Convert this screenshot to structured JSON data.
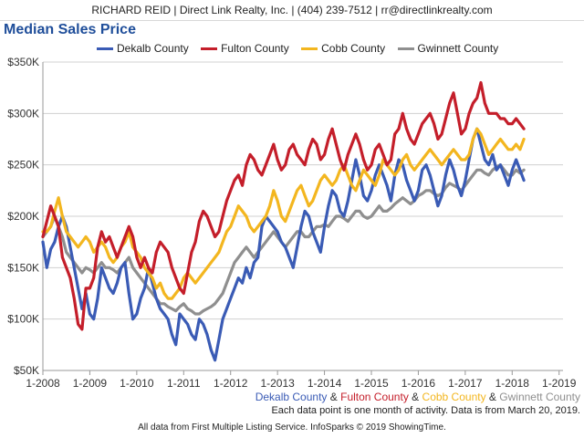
{
  "header": {
    "contact": "RICHARD REID | Direct Link Realty, Inc. | (404) 239-7512 | rr@directlinkrealty.com"
  },
  "colors": {
    "dekalb": "#3a5bb5",
    "fulton": "#c41e2a",
    "cobb": "#f3b61f",
    "gwinnett": "#8f8f8f",
    "title": "#1f4e9a"
  },
  "chart_data": {
    "type": "line",
    "title": "Median Sales Price",
    "xlabel": "",
    "ylabel": "",
    "ylim": [
      50000,
      350000
    ],
    "ytick_values": [
      50000,
      100000,
      150000,
      200000,
      250000,
      300000,
      350000
    ],
    "ytick_labels": [
      "$50K",
      "$100K",
      "$150K",
      "$200K",
      "$250K",
      "$300K",
      "$350K"
    ],
    "xtick_labels": [
      "1-2008",
      "1-2009",
      "1-2010",
      "1-2011",
      "1-2012",
      "1-2013",
      "1-2014",
      "1-2015",
      "1-2016",
      "1-2017",
      "1-2018",
      "1-2019"
    ],
    "x_start": "1-2008",
    "x_step": "1 month",
    "legend_position": "top",
    "series": [
      {
        "name": "Dekalb County",
        "key": "dekalb",
        "values": [
          175000,
          150000,
          168000,
          175000,
          190000,
          200000,
          190000,
          170000,
          150000,
          130000,
          110000,
          125000,
          105000,
          100000,
          120000,
          150000,
          140000,
          130000,
          125000,
          135000,
          150000,
          155000,
          125000,
          100000,
          105000,
          120000,
          130000,
          150000,
          135000,
          120000,
          110000,
          105000,
          100000,
          85000,
          75000,
          105000,
          100000,
          95000,
          85000,
          80000,
          100000,
          95000,
          85000,
          70000,
          60000,
          80000,
          100000,
          110000,
          120000,
          130000,
          140000,
          135000,
          150000,
          140000,
          155000,
          160000,
          190000,
          200000,
          195000,
          190000,
          185000,
          175000,
          170000,
          160000,
          150000,
          170000,
          190000,
          205000,
          200000,
          185000,
          175000,
          165000,
          190000,
          210000,
          225000,
          220000,
          205000,
          200000,
          215000,
          235000,
          255000,
          240000,
          220000,
          215000,
          225000,
          240000,
          250000,
          240000,
          230000,
          215000,
          240000,
          255000,
          250000,
          235000,
          225000,
          215000,
          225000,
          245000,
          250000,
          240000,
          225000,
          210000,
          220000,
          240000,
          255000,
          245000,
          230000,
          220000,
          235000,
          255000,
          275000,
          285000,
          270000,
          255000,
          250000,
          260000,
          245000,
          250000,
          240000,
          230000,
          245000,
          255000,
          245000,
          235000
        ],
        "label_text": "Dekalb County"
      },
      {
        "name": "Fulton County",
        "key": "fulton",
        "values": [
          180000,
          195000,
          210000,
          200000,
          190000,
          160000,
          150000,
          140000,
          120000,
          95000,
          90000,
          130000,
          130000,
          140000,
          170000,
          185000,
          175000,
          180000,
          170000,
          160000,
          170000,
          180000,
          190000,
          180000,
          160000,
          150000,
          160000,
          150000,
          145000,
          165000,
          175000,
          170000,
          165000,
          150000,
          140000,
          130000,
          125000,
          145000,
          165000,
          175000,
          195000,
          205000,
          200000,
          190000,
          180000,
          185000,
          200000,
          215000,
          225000,
          235000,
          240000,
          230000,
          250000,
          260000,
          255000,
          245000,
          240000,
          250000,
          260000,
          270000,
          255000,
          245000,
          250000,
          265000,
          270000,
          260000,
          255000,
          250000,
          265000,
          275000,
          270000,
          255000,
          260000,
          275000,
          285000,
          270000,
          255000,
          245000,
          260000,
          270000,
          280000,
          270000,
          255000,
          245000,
          250000,
          265000,
          270000,
          260000,
          250000,
          255000,
          280000,
          285000,
          300000,
          285000,
          275000,
          270000,
          280000,
          290000,
          295000,
          300000,
          290000,
          275000,
          280000,
          295000,
          310000,
          320000,
          300000,
          280000,
          285000,
          300000,
          310000,
          315000,
          330000,
          310000,
          300000,
          300000,
          300000,
          295000,
          295000,
          290000,
          290000,
          295000,
          290000,
          285000
        ],
        "label_text": "Fulton County"
      },
      {
        "name": "Cobb County",
        "key": "cobb",
        "values": [
          185000,
          185000,
          190000,
          205000,
          218000,
          200000,
          185000,
          180000,
          175000,
          170000,
          175000,
          180000,
          175000,
          165000,
          170000,
          175000,
          170000,
          160000,
          155000,
          160000,
          170000,
          175000,
          185000,
          170000,
          165000,
          160000,
          150000,
          145000,
          140000,
          130000,
          135000,
          125000,
          120000,
          120000,
          125000,
          130000,
          140000,
          145000,
          140000,
          135000,
          140000,
          145000,
          150000,
          155000,
          160000,
          165000,
          175000,
          185000,
          190000,
          200000,
          210000,
          205000,
          200000,
          190000,
          185000,
          190000,
          195000,
          200000,
          210000,
          225000,
          215000,
          200000,
          195000,
          205000,
          215000,
          225000,
          230000,
          220000,
          210000,
          215000,
          225000,
          235000,
          240000,
          235000,
          230000,
          235000,
          245000,
          250000,
          240000,
          230000,
          225000,
          235000,
          245000,
          240000,
          235000,
          230000,
          240000,
          255000,
          250000,
          245000,
          240000,
          245000,
          255000,
          260000,
          250000,
          245000,
          250000,
          255000,
          260000,
          265000,
          260000,
          255000,
          250000,
          255000,
          260000,
          265000,
          260000,
          255000,
          255000,
          260000,
          275000,
          285000,
          280000,
          270000,
          260000,
          265000,
          270000,
          275000,
          270000,
          265000,
          265000,
          270000,
          265000,
          275000
        ],
        "label_text": "Cobb County"
      },
      {
        "name": "Gwinnett County",
        "key": "gwinnett",
        "values": [
          180000,
          185000,
          190000,
          200000,
          190000,
          180000,
          165000,
          160000,
          155000,
          150000,
          145000,
          150000,
          148000,
          145000,
          150000,
          155000,
          150000,
          150000,
          148000,
          145000,
          150000,
          155000,
          160000,
          150000,
          145000,
          140000,
          135000,
          130000,
          125000,
          120000,
          115000,
          115000,
          112000,
          110000,
          108000,
          112000,
          115000,
          110000,
          108000,
          105000,
          105000,
          108000,
          110000,
          112000,
          115000,
          120000,
          125000,
          135000,
          145000,
          155000,
          160000,
          165000,
          170000,
          165000,
          160000,
          165000,
          170000,
          175000,
          180000,
          185000,
          180000,
          175000,
          170000,
          175000,
          180000,
          185000,
          185000,
          180000,
          180000,
          185000,
          190000,
          190000,
          192000,
          190000,
          195000,
          200000,
          200000,
          198000,
          195000,
          200000,
          205000,
          205000,
          200000,
          198000,
          200000,
          205000,
          210000,
          205000,
          205000,
          208000,
          212000,
          215000,
          218000,
          215000,
          212000,
          215000,
          220000,
          222000,
          225000,
          225000,
          222000,
          220000,
          222000,
          228000,
          232000,
          230000,
          228000,
          225000,
          230000,
          235000,
          240000,
          245000,
          245000,
          242000,
          240000,
          245000,
          248000,
          250000,
          245000,
          240000,
          240000,
          245000,
          242000,
          245000
        ],
        "label_text": "Gwinnett County"
      }
    ],
    "annotations": {
      "footer_names": [
        "Dekalb County",
        "Fulton County",
        "Cobb County",
        "Gwinnett County"
      ],
      "amp": "&",
      "note": "Each data point is one month of activity. Data is from March 20, 2019."
    }
  },
  "credit": "All data from First Multiple Listing Service. InfoSparks © 2019 ShowingTime."
}
